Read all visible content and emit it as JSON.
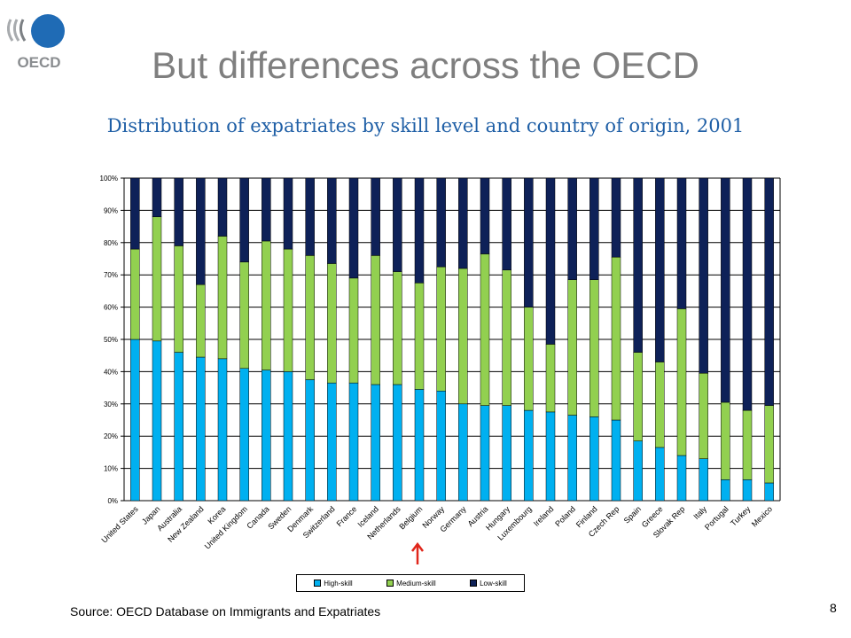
{
  "slide": {
    "title": "But differences across the OECD",
    "subtitle": "Distribution of expatriates by skill level and country of origin, 2001",
    "source": "Source: OECD Database on Immigrants and Expatriates",
    "page_number": "8",
    "logo_text": "OECD"
  },
  "colors": {
    "high": "#00B0F0",
    "medium": "#92D050",
    "low": "#0E2158",
    "title": "#7f7f7f",
    "subtitle": "#1f5fa6",
    "arrow": "#E0261B"
  },
  "legend": [
    {
      "label": "High-skill",
      "key": "high"
    },
    {
      "label": "Medium-skill",
      "key": "medium"
    },
    {
      "label": "Low-skill",
      "key": "low"
    }
  ],
  "chart_data": {
    "type": "bar",
    "stacked": true,
    "categories": [
      "United States",
      "Japan",
      "Australia",
      "New Zealand",
      "Korea",
      "United Kingdom",
      "Canada",
      "Sweden",
      "Denmark",
      "Switzerland",
      "France",
      "Iceland",
      "Netherlands",
      "Belgium",
      "Norway",
      "Germany",
      "Austria",
      "Hungary",
      "Luxembourg",
      "Ireland",
      "Poland",
      "Finland",
      "Czech Rep",
      "Spain",
      "Greece",
      "Slovak Rep",
      "Italy",
      "Portugal",
      "Turkey",
      "Mexico"
    ],
    "series": [
      {
        "name": "High-skill",
        "values": [
          50,
          49.5,
          46,
          44.5,
          44,
          41,
          40.5,
          40,
          37.5,
          36.5,
          36.5,
          36,
          36,
          34.5,
          34,
          30,
          29.5,
          29.5,
          28,
          27.5,
          26.5,
          26,
          25,
          18.5,
          16.5,
          14,
          13,
          6.5,
          6.5,
          5.5
        ]
      },
      {
        "name": "Medium-skill",
        "values": [
          28,
          38.5,
          33,
          22.5,
          38,
          33,
          40,
          38,
          38.5,
          37,
          32.5,
          40,
          35,
          33,
          38.5,
          42,
          47,
          42,
          32,
          21,
          42,
          42.5,
          50.5,
          27.5,
          26.5,
          45.5,
          26.5,
          24,
          21.5,
          24
        ]
      },
      {
        "name": "Low-skill",
        "values": [
          22,
          12,
          21,
          33,
          18,
          26,
          19.5,
          22,
          24,
          26.5,
          31,
          24,
          29,
          32.5,
          27.5,
          28,
          23.5,
          28.5,
          40,
          51.5,
          31.5,
          31.5,
          24.5,
          54,
          57,
          40.5,
          60.5,
          69.5,
          72,
          70.5
        ]
      }
    ],
    "y_ticks": [
      "0%",
      "10%",
      "20%",
      "30%",
      "40%",
      "50%",
      "60%",
      "70%",
      "80%",
      "90%",
      "100%"
    ],
    "ylim": [
      0,
      100
    ],
    "highlight_category": "Belgium",
    "grid": true,
    "legend_position": "bottom"
  }
}
